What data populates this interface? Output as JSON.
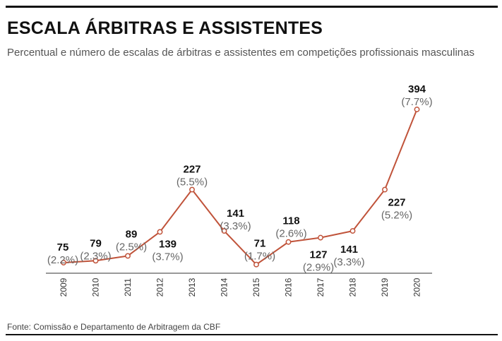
{
  "header": {
    "title": "ESCALA ÁRBITRAS E ASSISTENTES",
    "subtitle": "Percentual e número de escalas de árbitras e assistentes em competições profissionais masculinas"
  },
  "footer": {
    "source": "Fonte: Comissão e Departamento de Arbitragem da CBF"
  },
  "colors": {
    "line": "#c0533a",
    "axis": "#333333"
  },
  "chart_data": {
    "type": "line",
    "title": "ESCALA ÁRBITRAS E ASSISTENTES",
    "subtitle": "Percentual e número de escalas de árbitras e assistentes em competições profissionais masculinas",
    "xlabel": "",
    "ylabel": "",
    "grid": false,
    "legend": "none",
    "x": [
      "2009",
      "2010",
      "2011",
      "2012",
      "2013",
      "2014",
      "2015",
      "2016",
      "2017",
      "2018",
      "2019",
      "2020"
    ],
    "series": [
      {
        "values": [
          75,
          79,
          89,
          139,
          227,
          141,
          71,
          118,
          127,
          141,
          227,
          394
        ],
        "percent_labels": [
          "(2.2%)",
          "(2.3%)",
          "(2.5%)",
          "(3.7%)",
          "(5.5%)",
          "(3.3%)",
          "(1.7%)",
          "(2.6%)",
          "(2.9%)",
          "(3.3%)",
          "(5.2%)",
          "(7.7%)"
        ]
      }
    ]
  }
}
